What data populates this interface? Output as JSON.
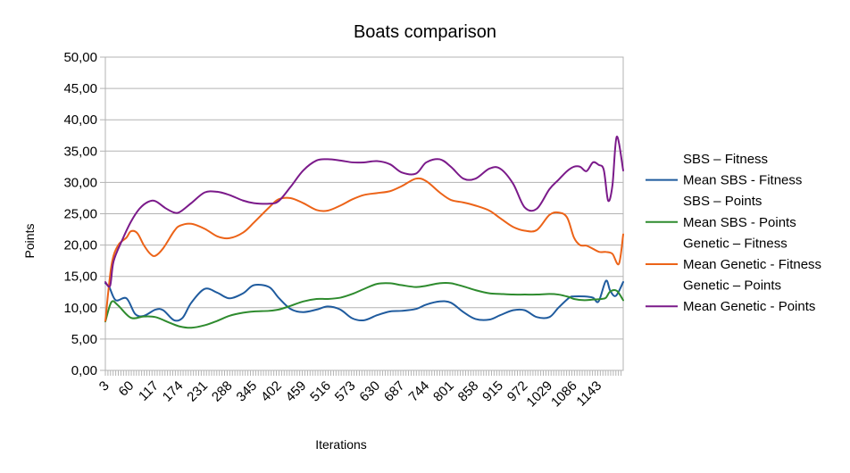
{
  "chart_data": {
    "type": "line",
    "title": "Boats comparison",
    "xlabel": "Iterations",
    "ylabel": "Points",
    "xlim": [
      1,
      1200
    ],
    "ylim": [
      0,
      50
    ],
    "y_ticks": [
      "0,00",
      "5,00",
      "10,00",
      "15,00",
      "20,00",
      "25,00",
      "30,00",
      "35,00",
      "40,00",
      "45,00",
      "50,00"
    ],
    "x_ticks": [
      "3",
      "60",
      "117",
      "174",
      "231",
      "288",
      "345",
      "402",
      "459",
      "516",
      "573",
      "630",
      "687",
      "744",
      "801",
      "858",
      "915",
      "972",
      "1029",
      "1086",
      "1143"
    ],
    "grid": "horizontal",
    "legend": "right",
    "legend_entries": [
      {
        "name": "SBS – Fitness",
        "color": "",
        "visible": false
      },
      {
        "name": "Mean SBS - Fitness",
        "color": "#1f5b9e",
        "visible": true
      },
      {
        "name": "SBS – Points",
        "color": "",
        "visible": false
      },
      {
        "name": "Mean SBS - Points",
        "color": "#2e8b2e",
        "visible": true
      },
      {
        "name": "Genetic – Fitness",
        "color": "",
        "visible": false
      },
      {
        "name": "Mean Genetic - Fitness",
        "color": "#ec6318",
        "visible": true
      },
      {
        "name": "Genetic – Points",
        "color": "",
        "visible": false
      },
      {
        "name": "Mean Genetic - Points",
        "color": "#7b1a8a",
        "visible": true
      }
    ],
    "series": [
      {
        "name": "Mean SBS - Fitness",
        "color": "#1f5b9e",
        "x": [
          1,
          10,
          25,
          50,
          70,
          90,
          117,
          135,
          160,
          180,
          200,
          231,
          260,
          288,
          320,
          345,
          380,
          402,
          430,
          459,
          490,
          516,
          545,
          573,
          600,
          630,
          660,
          687,
          720,
          744,
          775,
          801,
          830,
          858,
          890,
          915,
          945,
          972,
          1000,
          1029,
          1050,
          1075,
          1086,
          1110,
          1130,
          1143,
          1160,
          1170,
          1183,
          1200
        ],
        "y": [
          13.9,
          13.3,
          11.2,
          11.5,
          9.0,
          8.7,
          9.7,
          9.6,
          8.0,
          8.4,
          10.8,
          13.0,
          12.4,
          11.5,
          12.3,
          13.6,
          13.3,
          11.6,
          9.8,
          9.3,
          9.7,
          10.2,
          9.7,
          8.3,
          8.0,
          8.8,
          9.4,
          9.5,
          9.8,
          10.5,
          11.0,
          10.8,
          9.3,
          8.2,
          8.1,
          8.8,
          9.6,
          9.6,
          8.5,
          8.5,
          10.0,
          11.6,
          11.8,
          11.8,
          11.6,
          11.0,
          14.3,
          12.7,
          11.9,
          14.1
        ]
      },
      {
        "name": "Mean SBS - Points",
        "color": "#2e8b2e",
        "x": [
          1,
          15,
          30,
          60,
          90,
          117,
          150,
          174,
          200,
          231,
          260,
          288,
          320,
          345,
          380,
          402,
          430,
          459,
          490,
          516,
          545,
          573,
          600,
          630,
          660,
          687,
          720,
          744,
          775,
          801,
          830,
          858,
          890,
          915,
          945,
          972,
          1000,
          1029,
          1050,
          1075,
          1086,
          1110,
          1130,
          1150,
          1160,
          1170,
          1185,
          1200
        ],
        "y": [
          7.8,
          10.9,
          10.4,
          8.4,
          8.6,
          8.5,
          7.6,
          7.0,
          6.8,
          7.2,
          7.9,
          8.7,
          9.2,
          9.4,
          9.5,
          9.7,
          10.3,
          11.0,
          11.4,
          11.4,
          11.6,
          12.2,
          13.0,
          13.8,
          13.9,
          13.6,
          13.3,
          13.5,
          13.9,
          13.9,
          13.4,
          12.8,
          12.3,
          12.2,
          12.1,
          12.1,
          12.1,
          12.2,
          12.1,
          11.7,
          11.4,
          11.2,
          11.3,
          11.4,
          11.6,
          12.6,
          12.7,
          11.2
        ]
      },
      {
        "name": "Mean Genetic - Fitness",
        "color": "#ec6318",
        "x": [
          1,
          15,
          30,
          50,
          60,
          75,
          90,
          105,
          117,
          135,
          160,
          174,
          200,
          231,
          260,
          288,
          320,
          345,
          380,
          402,
          430,
          459,
          490,
          516,
          545,
          573,
          600,
          630,
          660,
          687,
          720,
          744,
          775,
          801,
          830,
          858,
          890,
          915,
          945,
          972,
          1000,
          1029,
          1050,
          1070,
          1086,
          1100,
          1115,
          1130,
          1145,
          1160,
          1175,
          1190,
          1200
        ],
        "y": [
          7.9,
          16.7,
          19.9,
          21.2,
          22.2,
          21.9,
          20.0,
          18.6,
          18.3,
          19.5,
          22.2,
          23.1,
          23.4,
          22.6,
          21.4,
          21.1,
          22.0,
          23.6,
          26.0,
          27.3,
          27.5,
          26.7,
          25.6,
          25.5,
          26.3,
          27.3,
          28.0,
          28.3,
          28.6,
          29.4,
          30.6,
          30.2,
          28.4,
          27.2,
          26.8,
          26.3,
          25.5,
          24.3,
          22.9,
          22.3,
          22.4,
          24.8,
          25.2,
          24.4,
          21.2,
          20.0,
          19.9,
          19.4,
          18.9,
          18.9,
          18.6,
          17.0,
          21.7
        ]
      },
      {
        "name": "Mean Genetic - Points",
        "color": "#7b1a8a",
        "x": [
          1,
          12,
          20,
          40,
          60,
          80,
          100,
          117,
          140,
          160,
          174,
          200,
          231,
          260,
          288,
          320,
          345,
          380,
          402,
          430,
          459,
          490,
          516,
          545,
          573,
          600,
          630,
          660,
          687,
          720,
          744,
          775,
          801,
          830,
          858,
          890,
          915,
          945,
          972,
          1000,
          1029,
          1050,
          1070,
          1086,
          1100,
          1115,
          1130,
          1143,
          1155,
          1165,
          1175,
          1185,
          1200
        ],
        "y": [
          14.1,
          13.5,
          17.4,
          20.8,
          23.7,
          25.8,
          26.9,
          27.0,
          25.9,
          25.2,
          25.3,
          26.7,
          28.4,
          28.5,
          28.0,
          27.1,
          26.7,
          26.6,
          27.0,
          29.3,
          31.9,
          33.5,
          33.7,
          33.5,
          33.2,
          33.2,
          33.4,
          32.9,
          31.6,
          31.4,
          33.2,
          33.7,
          32.5,
          30.6,
          30.6,
          32.2,
          32.2,
          29.8,
          26.0,
          25.8,
          28.9,
          30.4,
          31.8,
          32.5,
          32.5,
          31.8,
          33.2,
          32.8,
          32.0,
          27.1,
          29.5,
          37.3,
          31.9
        ]
      }
    ]
  }
}
